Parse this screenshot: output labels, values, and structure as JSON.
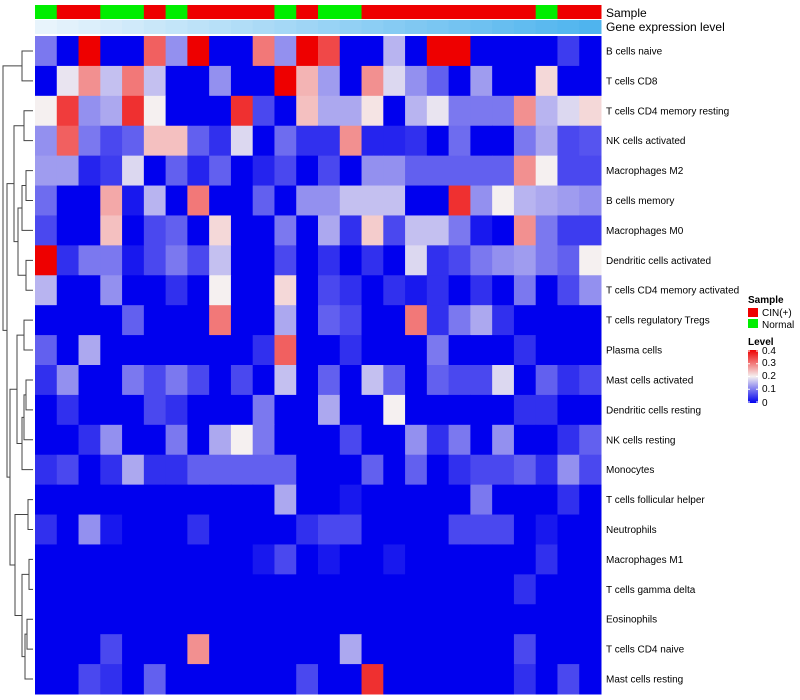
{
  "chart_data": {
    "type": "heatmap",
    "title": "",
    "annotation_tracks": [
      "Sample",
      "Gene expression level"
    ],
    "sample_groups": [
      "Normal",
      "CIN(+)",
      "CIN(+)",
      "Normal",
      "Normal",
      "CIN(+)",
      "Normal",
      "CIN(+)",
      "CIN(+)",
      "CIN(+)",
      "CIN(+)",
      "Normal",
      "CIN(+)",
      "Normal",
      "Normal",
      "CIN(+)",
      "CIN(+)",
      "CIN(+)",
      "CIN(+)",
      "CIN(+)",
      "CIN(+)",
      "CIN(+)",
      "CIN(+)",
      "Normal",
      "CIN(+)",
      "CIN(+)"
    ],
    "rows": [
      "B cells naive",
      "T cells CD8",
      "T cells CD4 memory resting",
      "NK cells activated",
      "Macrophages M2",
      "B cells memory",
      "Macrophages M0",
      "Dendritic cells activated",
      "T cells CD4 memory activated",
      "T cells regulatory  Tregs",
      "Plasma cells",
      "Mast cells activated",
      "Dendritic cells resting",
      "NK cells resting",
      "Monocytes",
      "T cells follicular helper",
      "Neutrophils",
      "Macrophages M1",
      "T cells gamma delta",
      "Eosinophils",
      "T cells CD4 naive",
      "Mast cells resting"
    ],
    "values": [
      [
        0.1,
        0.0,
        0.4,
        0.0,
        0.0,
        0.32,
        0.12,
        0.4,
        0.0,
        0.0,
        0.3,
        0.12,
        0.4,
        0.34,
        0.0,
        0.0,
        0.15,
        0.0,
        0.4,
        0.4,
        0.0,
        0.0,
        0.0,
        0.0,
        0.05,
        0.0
      ],
      [
        0.0,
        0.19,
        0.28,
        0.16,
        0.3,
        0.16,
        0.0,
        0.0,
        0.12,
        0.0,
        0.0,
        0.4,
        0.25,
        0.13,
        0.0,
        0.28,
        0.18,
        0.12,
        0.08,
        0.0,
        0.13,
        0.0,
        0.0,
        0.22,
        0.0,
        0.0
      ],
      [
        0.2,
        0.35,
        0.12,
        0.14,
        0.36,
        0.2,
        0.0,
        0.0,
        0.0,
        0.36,
        0.06,
        0.0,
        0.24,
        0.14,
        0.14,
        0.21,
        0.0,
        0.15,
        0.19,
        0.1,
        0.1,
        0.1,
        0.28,
        0.15,
        0.18,
        0.22
      ],
      [
        0.12,
        0.32,
        0.1,
        0.06,
        0.08,
        0.24,
        0.24,
        0.08,
        0.04,
        0.18,
        0.0,
        0.09,
        0.04,
        0.04,
        0.28,
        0.03,
        0.03,
        0.04,
        0.0,
        0.09,
        0.0,
        0.0,
        0.1,
        0.14,
        0.06,
        0.07
      ],
      [
        0.13,
        0.13,
        0.03,
        0.05,
        0.18,
        0.0,
        0.08,
        0.03,
        0.08,
        0.0,
        0.03,
        0.06,
        0.0,
        0.06,
        0.0,
        0.12,
        0.12,
        0.08,
        0.08,
        0.08,
        0.08,
        0.08,
        0.28,
        0.2,
        0.06,
        0.06
      ],
      [
        0.09,
        0.0,
        0.0,
        0.26,
        0.02,
        0.15,
        0.0,
        0.3,
        0.0,
        0.0,
        0.08,
        0.0,
        0.12,
        0.12,
        0.16,
        0.16,
        0.16,
        0.0,
        0.0,
        0.36,
        0.12,
        0.2,
        0.15,
        0.14,
        0.13,
        0.12
      ],
      [
        0.06,
        0.0,
        0.0,
        0.24,
        0.0,
        0.06,
        0.08,
        0.0,
        0.22,
        0.0,
        0.0,
        0.1,
        0.0,
        0.14,
        0.04,
        0.23,
        0.06,
        0.16,
        0.16,
        0.1,
        0.02,
        0.0,
        0.28,
        0.1,
        0.05,
        0.05
      ],
      [
        0.4,
        0.04,
        0.1,
        0.1,
        0.02,
        0.06,
        0.1,
        0.06,
        0.16,
        0.0,
        0.0,
        0.06,
        0.0,
        0.04,
        0.0,
        0.04,
        0.0,
        0.18,
        0.04,
        0.06,
        0.1,
        0.12,
        0.13,
        0.1,
        0.08,
        0.2
      ],
      [
        0.15,
        0.0,
        0.0,
        0.12,
        0.0,
        0.0,
        0.04,
        0.0,
        0.2,
        0.0,
        0.0,
        0.22,
        0.0,
        0.06,
        0.04,
        0.0,
        0.04,
        0.02,
        0.04,
        0.0,
        0.04,
        0.0,
        0.1,
        0.0,
        0.06,
        0.12
      ],
      [
        0.0,
        0.0,
        0.0,
        0.0,
        0.08,
        0.0,
        0.0,
        0.0,
        0.3,
        0.0,
        0.0,
        0.14,
        0.0,
        0.08,
        0.06,
        0.0,
        0.0,
        0.3,
        0.04,
        0.1,
        0.14,
        0.04,
        0.0,
        0.0,
        0.0,
        0.0
      ],
      [
        0.08,
        0.0,
        0.14,
        0.0,
        0.0,
        0.0,
        0.0,
        0.0,
        0.0,
        0.0,
        0.04,
        0.32,
        0.0,
        0.0,
        0.04,
        0.0,
        0.0,
        0.0,
        0.1,
        0.0,
        0.0,
        0.0,
        0.04,
        0.0,
        0.0,
        0.0
      ],
      [
        0.04,
        0.12,
        0.0,
        0.0,
        0.1,
        0.06,
        0.1,
        0.06,
        0.0,
        0.06,
        0.0,
        0.16,
        0.0,
        0.08,
        0.0,
        0.16,
        0.08,
        0.0,
        0.08,
        0.06,
        0.06,
        0.18,
        0.0,
        0.08,
        0.04,
        0.06
      ],
      [
        0.0,
        0.04,
        0.0,
        0.0,
        0.0,
        0.06,
        0.04,
        0.0,
        0.0,
        0.0,
        0.1,
        0.0,
        0.0,
        0.14,
        0.0,
        0.0,
        0.2,
        0.0,
        0.0,
        0.0,
        0.0,
        0.0,
        0.04,
        0.04,
        0.0,
        0.0
      ],
      [
        0.0,
        0.0,
        0.04,
        0.12,
        0.0,
        0.0,
        0.1,
        0.0,
        0.14,
        0.2,
        0.1,
        0.0,
        0.0,
        0.0,
        0.06,
        0.0,
        0.0,
        0.12,
        0.04,
        0.1,
        0.0,
        0.12,
        0.0,
        0.0,
        0.04,
        0.08
      ],
      [
        0.04,
        0.06,
        0.0,
        0.04,
        0.14,
        0.04,
        0.04,
        0.08,
        0.08,
        0.08,
        0.08,
        0.08,
        0.0,
        0.0,
        0.0,
        0.08,
        0.0,
        0.08,
        0.0,
        0.04,
        0.06,
        0.06,
        0.08,
        0.04,
        0.12,
        0.06
      ],
      [
        0.0,
        0.0,
        0.0,
        0.0,
        0.0,
        0.0,
        0.0,
        0.0,
        0.0,
        0.0,
        0.0,
        0.14,
        0.0,
        0.0,
        0.02,
        0.0,
        0.0,
        0.0,
        0.0,
        0.0,
        0.1,
        0.0,
        0.0,
        0.0,
        0.04,
        0.0
      ],
      [
        0.04,
        0.0,
        0.12,
        0.02,
        0.0,
        0.0,
        0.0,
        0.04,
        0.0,
        0.0,
        0.0,
        0.0,
        0.04,
        0.06,
        0.06,
        0.0,
        0.0,
        0.0,
        0.0,
        0.06,
        0.06,
        0.06,
        0.0,
        0.02,
        0.0,
        0.0
      ],
      [
        0.0,
        0.0,
        0.0,
        0.0,
        0.0,
        0.0,
        0.0,
        0.0,
        0.0,
        0.0,
        0.02,
        0.06,
        0.0,
        0.02,
        0.0,
        0.0,
        0.02,
        0.0,
        0.0,
        0.0,
        0.0,
        0.0,
        0.0,
        0.04,
        0.0,
        0.0
      ],
      [
        0.0,
        0.0,
        0.0,
        0.0,
        0.0,
        0.0,
        0.0,
        0.0,
        0.0,
        0.0,
        0.0,
        0.0,
        0.0,
        0.0,
        0.0,
        0.0,
        0.0,
        0.0,
        0.0,
        0.0,
        0.0,
        0.0,
        0.04,
        0.0,
        0.0,
        0.0
      ],
      [
        0.0,
        0.0,
        0.0,
        0.0,
        0.0,
        0.0,
        0.0,
        0.0,
        0.0,
        0.0,
        0.0,
        0.0,
        0.0,
        0.0,
        0.0,
        0.0,
        0.0,
        0.0,
        0.0,
        0.0,
        0.0,
        0.0,
        0.0,
        0.0,
        0.0,
        0.0
      ],
      [
        0.0,
        0.0,
        0.0,
        0.06,
        0.0,
        0.0,
        0.0,
        0.28,
        0.0,
        0.0,
        0.0,
        0.0,
        0.0,
        0.0,
        0.14,
        0.0,
        0.0,
        0.0,
        0.0,
        0.0,
        0.0,
        0.0,
        0.06,
        0.0,
        0.0,
        0.0
      ],
      [
        0.0,
        0.0,
        0.06,
        0.04,
        0.0,
        0.08,
        0.0,
        0.0,
        0.0,
        0.0,
        0.0,
        0.0,
        0.06,
        0.0,
        0.0,
        0.36,
        0.0,
        0.0,
        0.0,
        0.0,
        0.0,
        0.0,
        0.04,
        0.0,
        0.06,
        0.0
      ]
    ],
    "legend": {
      "sample_title": "Sample",
      "sample_items": [
        {
          "label": "CIN(+)",
          "color": "#EE0000"
        },
        {
          "label": "Normal",
          "color": "#00EE00"
        }
      ],
      "level_title": "Level",
      "level_ticks": [
        "0.4",
        "0.3",
        "0.2",
        "0.1",
        "0"
      ],
      "level_range": [
        0,
        0.4
      ]
    },
    "colors": {
      "low": "#0000EE",
      "mid": "#F5F0F0",
      "high": "#EE0000",
      "expr_start": "#E8F4FC",
      "expr_end": "#4FB4EE"
    }
  }
}
